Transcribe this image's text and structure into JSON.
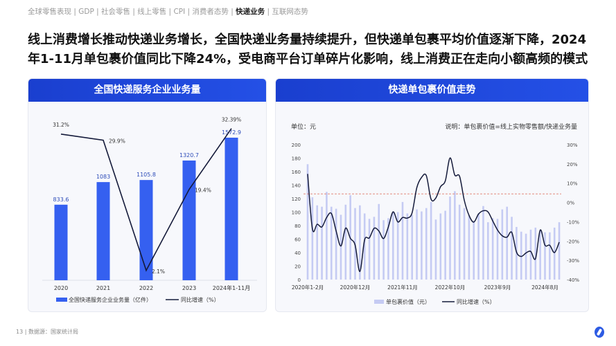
{
  "nav": {
    "items": [
      "全球零售表现",
      "GDP",
      "社会零售",
      "线上零售",
      "CPI",
      "消费者态势",
      "快递业务",
      "互联网态势"
    ],
    "active_index": 6,
    "separator": " | "
  },
  "title": "线上消费增长推动快递业务增长，全国快递业务量持续提升，但快递单包裹平均价值逐渐下降，2024年1-11月单包裹价值同比下降24%，受电商平台订单碎片化影响，线上消费正在走向小额高频的模式",
  "footer": {
    "page": "13",
    "source": "数据源：国家统计局"
  },
  "colors": {
    "bar_left": "#3560f0",
    "bar_right": "#c5cbf3",
    "line": "#141a3a",
    "header": "#1f45d6",
    "reference": "#e07a6a"
  },
  "chart_data": [
    {
      "type": "bar",
      "title": "全国快递服务企业业务量",
      "categories": [
        "2020",
        "2021",
        "2022",
        "2023",
        "2024年1-11月"
      ],
      "series": [
        {
          "name": "全国快递服务企业业务量（亿件）",
          "type": "bar",
          "values": [
            833.6,
            1083,
            1105.8,
            1320.7,
            1572.9
          ],
          "labels": [
            "833.6",
            "1083",
            "1105.8",
            "1320.7",
            "1572.9"
          ]
        },
        {
          "name": "同比增速（%）",
          "type": "line",
          "values": [
            31.2,
            29.9,
            2.1,
            19.4,
            32.39
          ],
          "labels": [
            "31.2%",
            "29.9%",
            "2.1%",
            "19.4%",
            "32.39%"
          ]
        }
      ],
      "ylim": [
        0,
        1800
      ],
      "y2lim": [
        0,
        35
      ],
      "legend": "bottom",
      "grid": false
    },
    {
      "type": "bar",
      "title": "快递单包裹价值走势",
      "unit_label": "单位：元",
      "note": "说明：单包裹价值=线上实物零售额/快递业务量",
      "x_tick_labels": [
        "2020年1-2月",
        "2020年12月",
        "2021年11月",
        "2022年10月",
        "2023年9月",
        "2024年8月"
      ],
      "x_tick_index": [
        0,
        10,
        20,
        30,
        40,
        50
      ],
      "left_ticks": [
        "0",
        "20",
        "40",
        "60",
        "80",
        "100",
        "120",
        "140",
        "160",
        "180",
        "200"
      ],
      "right_ticks": [
        "-40%",
        "-30%",
        "-20%",
        "-10%",
        "0%",
        "10%",
        "20%",
        "30%"
      ],
      "ylim": [
        0,
        200
      ],
      "y2lim": [
        -40,
        30
      ],
      "reference_line": 127,
      "series": [
        {
          "name": "单包裹价值（元）",
          "type": "bar",
          "values": [
            171,
            122,
            110,
            108,
            130,
            108,
            105,
            96,
            111,
            125,
            106,
            110,
            98,
            90,
            93,
            112,
            88,
            91,
            101,
            100,
            115,
            98,
            96,
            104,
            101,
            106,
            115,
            89,
            98,
            102,
            123,
            131,
            111,
            106,
            95,
            87,
            98,
            109,
            85,
            91,
            90,
            104,
            108,
            93,
            78,
            71,
            68,
            74,
            77,
            72,
            70,
            70,
            77,
            85
          ]
        },
        {
          "name": "同比增速（%）",
          "type": "line",
          "values": [
            14.8,
            -13.7,
            -11.3,
            -12.7,
            -7.8,
            -5.7,
            -14.8,
            -22.6,
            -13.3,
            -18.6,
            -22.1,
            -35.8,
            -19.4,
            -18.4,
            -13.4,
            -14.8,
            -18.7,
            -12.7,
            -4.9,
            -10.1,
            -7.8,
            -8.1,
            -5.4,
            7.7,
            13,
            13.9,
            1.7,
            2.3,
            8.2,
            11.2,
            23.1,
            14.2,
            13.6,
            1.1,
            -6.7,
            -10.2,
            -6,
            -4.3,
            -4.9,
            -9.6,
            -14.3,
            -17.3,
            -18,
            -15.5,
            -25.7,
            -28,
            -26.2,
            -25.4,
            -29.2,
            -14.3,
            -22.2,
            -22.2,
            -26,
            -20.6
          ]
        }
      ],
      "legend": "bottom",
      "grid": false
    }
  ]
}
